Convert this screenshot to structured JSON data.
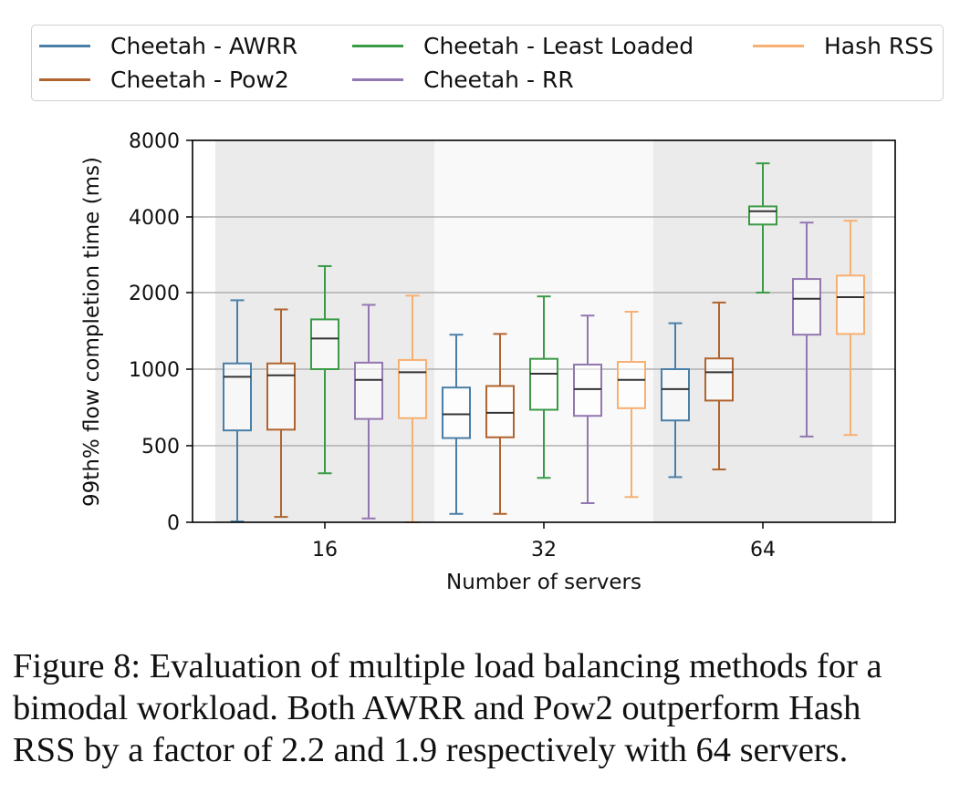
{
  "legend": [
    {
      "name": "Cheetah - AWRR",
      "color": "#4a7fa7"
    },
    {
      "name": "Cheetah - Least Loaded",
      "color": "#3a9a46"
    },
    {
      "name": "Hash RSS",
      "color": "#f6b072"
    },
    {
      "name": "Cheetah - Pow2",
      "color": "#b0642e"
    },
    {
      "name": "Cheetah - RR",
      "color": "#9277b0"
    }
  ],
  "chart_data": {
    "type": "box",
    "xlabel": "Number of servers",
    "ylabel": "99th% flow completion time (ms)",
    "categories": [
      "16",
      "32",
      "64"
    ],
    "y_ticks": [
      0,
      500,
      1000,
      2000,
      4000,
      8000
    ],
    "y_scale": "piecewise (ticks evenly spaced)",
    "grid": "horizontal",
    "legend_position": "top",
    "background_bands": [
      "gray",
      "white",
      "gray"
    ],
    "median_color": "#333333",
    "series": [
      {
        "name": "Cheetah - AWRR",
        "color": "#4a7fa7",
        "boxes": [
          {
            "whisker_low": 5,
            "q1": 600,
            "median": 950,
            "q3": 1075,
            "whisker_high": 1900
          },
          {
            "whisker_low": 55,
            "q1": 550,
            "median": 705,
            "q3": 880,
            "whisker_high": 1450
          },
          {
            "whisker_low": 295,
            "q1": 665,
            "median": 870,
            "q3": 1000,
            "whisker_high": 1600
          }
        ]
      },
      {
        "name": "Cheetah - Pow2",
        "color": "#b0642e",
        "boxes": [
          {
            "whisker_low": 35,
            "q1": 605,
            "median": 960,
            "q3": 1075,
            "whisker_high": 1780
          },
          {
            "whisker_low": 55,
            "q1": 555,
            "median": 715,
            "q3": 890,
            "whisker_high": 1460
          },
          {
            "whisker_low": 345,
            "q1": 795,
            "median": 980,
            "q3": 1140,
            "whisker_high": 1870
          }
        ]
      },
      {
        "name": "Cheetah - Least Loaded",
        "color": "#3a9a46",
        "boxes": [
          {
            "whisker_low": 320,
            "q1": 1000,
            "median": 1400,
            "q3": 1650,
            "whisker_high": 2700
          },
          {
            "whisker_low": 290,
            "q1": 735,
            "median": 970,
            "q3": 1135,
            "whisker_high": 1950
          },
          {
            "whisker_low": 2000,
            "q1": 3800,
            "median": 4300,
            "q3": 4550,
            "whisker_high": 6800
          }
        ]
      },
      {
        "name": "Cheetah - RR",
        "color": "#9277b0",
        "boxes": [
          {
            "whisker_low": 25,
            "q1": 675,
            "median": 930,
            "q3": 1085,
            "whisker_high": 1840
          },
          {
            "whisker_low": 125,
            "q1": 695,
            "median": 870,
            "q3": 1060,
            "whisker_high": 1700
          },
          {
            "whisker_low": 560,
            "q1": 1450,
            "median": 1920,
            "q3": 2360,
            "whisker_high": 3850
          }
        ]
      },
      {
        "name": "Hash RSS",
        "color": "#f6b072",
        "boxes": [
          {
            "whisker_low": 0,
            "q1": 680,
            "median": 980,
            "q3": 1120,
            "whisker_high": 1960
          },
          {
            "whisker_low": 165,
            "q1": 745,
            "median": 930,
            "q3": 1095,
            "whisker_high": 1750
          },
          {
            "whisker_low": 570,
            "q1": 1460,
            "median": 1940,
            "q3": 2450,
            "whisker_high": 3900
          }
        ]
      }
    ]
  },
  "caption": {
    "line1": "Figure 8: Evaluation of multiple load balancing methods for a",
    "line2": "bimodal workload. Both AWRR and Pow2 outperform Hash",
    "line3": "RSS by a factor of 2.2 and 1.9 respectively with 64 servers."
  }
}
